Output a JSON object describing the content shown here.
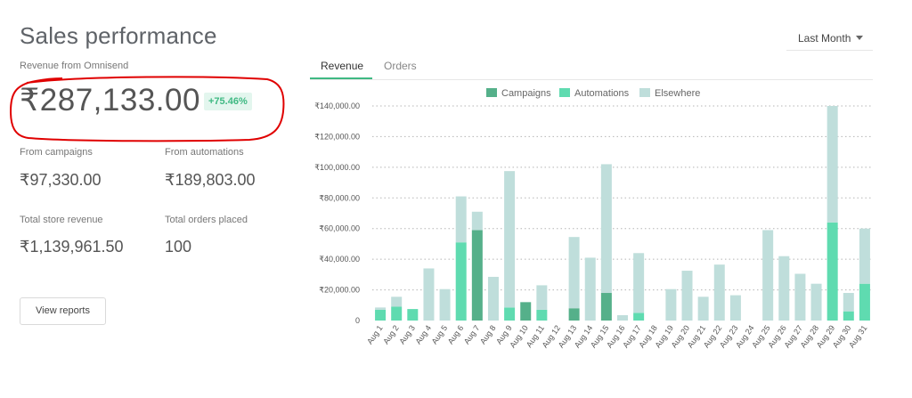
{
  "header": {
    "title": "Sales performance"
  },
  "period": {
    "label": "Last Month"
  },
  "revenue": {
    "label": "Revenue from Omnisend",
    "amount": "₹287,133.00",
    "change": "+75.46%"
  },
  "stats": {
    "campaigns_label": "From campaigns",
    "campaigns_value": "₹97,330.00",
    "automations_label": "From automations",
    "automations_value": "₹189,803.00",
    "store_label": "Total store revenue",
    "store_value": "₹1,139,961.50",
    "orders_label": "Total orders placed",
    "orders_value": "100"
  },
  "actions": {
    "view_reports": "View reports"
  },
  "tabs": {
    "revenue": "Revenue",
    "orders": "Orders"
  },
  "legend": {
    "campaigns": "Campaigns",
    "automations": "Automations",
    "elsewhere": "Elsewhere"
  },
  "colors": {
    "campaigns": "#55b08a",
    "automations": "#5fdbb0",
    "elsewhere": "#bfdedb",
    "accent": "#3fb983",
    "annotation": "#e00000"
  },
  "chart_data": {
    "type": "bar",
    "stacked": true,
    "ylim": [
      0,
      140000
    ],
    "yticks": [
      "0",
      "₹20,000.00",
      "₹40,000.00",
      "₹60,000.00",
      "₹80,000.00",
      "₹100,000.00",
      "₹120,000.00",
      "₹140,000.00"
    ],
    "grid": true,
    "legend_position": "top",
    "categories": [
      "Aug 1",
      "Aug 2",
      "Aug 3",
      "Aug 4",
      "Aug 5",
      "Aug 6",
      "Aug 7",
      "Aug 8",
      "Aug 9",
      "Aug 10",
      "Aug 11",
      "Aug 12",
      "Aug 13",
      "Aug 14",
      "Aug 15",
      "Aug 16",
      "Aug 17",
      "Aug 18",
      "Aug 19",
      "Aug 20",
      "Aug 21",
      "Aug 22",
      "Aug 23",
      "Aug 24",
      "Aug 25",
      "Aug 26",
      "Aug 27",
      "Aug 28",
      "Aug 29",
      "Aug 30",
      "Aug 31"
    ],
    "series": [
      {
        "name": "Campaigns",
        "color": "#55b08a",
        "values": [
          0,
          0,
          0,
          0,
          0,
          0,
          59000,
          0,
          0,
          12000,
          0,
          0,
          8000,
          0,
          18000,
          0,
          0,
          0,
          0,
          0,
          0,
          0,
          0,
          0,
          0,
          0,
          0,
          0,
          0,
          0,
          0
        ]
      },
      {
        "name": "Automations",
        "color": "#5fdbb0",
        "values": [
          7000,
          9000,
          7500,
          0,
          0,
          51000,
          0,
          0,
          8500,
          0,
          7000,
          0,
          0,
          0,
          0,
          0,
          5000,
          0,
          0,
          0,
          0,
          0,
          0,
          0,
          0,
          0,
          0,
          0,
          64000,
          6000,
          24000
        ]
      },
      {
        "name": "Elsewhere",
        "color": "#bfdedb",
        "values": [
          1500,
          6500,
          0,
          34000,
          20500,
          30000,
          12000,
          28500,
          89000,
          0,
          16000,
          0,
          46500,
          41000,
          84000,
          3500,
          39000,
          0,
          20500,
          32500,
          15500,
          36500,
          16500,
          0,
          59000,
          42000,
          30500,
          24000,
          76000,
          12000,
          36000
        ]
      }
    ]
  }
}
